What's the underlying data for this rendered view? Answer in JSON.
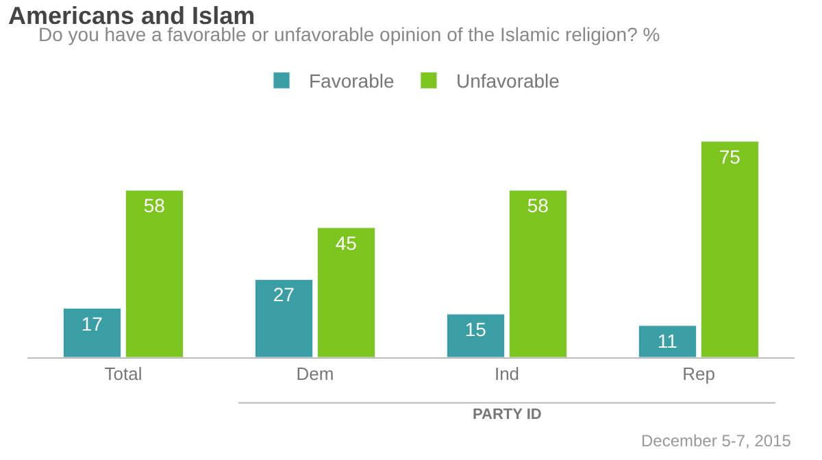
{
  "chart_data": {
    "type": "bar",
    "title": "Americans and Islam",
    "subtitle": "Do you have a favorable or unfavorable opinion of the Islamic religion? %",
    "categories": [
      "Total",
      "Dem",
      "Ind",
      "Rep"
    ],
    "series": [
      {
        "name": "Favorable",
        "color": "#3a9ea5",
        "values": [
          17,
          27,
          15,
          11
        ]
      },
      {
        "name": "Unfavorable",
        "color": "#7dc41f",
        "values": [
          58,
          45,
          58,
          75
        ]
      }
    ],
    "data_labels": true,
    "legend": "top",
    "annotations": [
      "PARTY ID",
      "December 5-7, 2015"
    ]
  }
}
